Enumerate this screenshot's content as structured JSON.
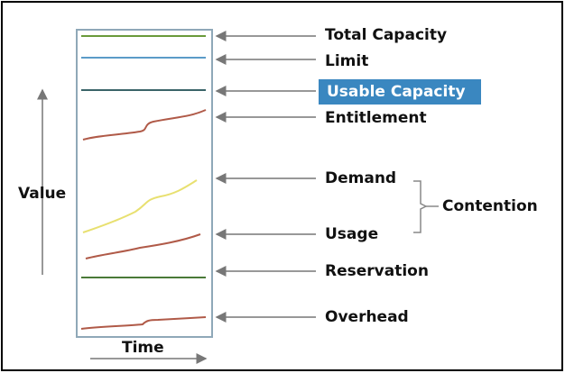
{
  "axes": {
    "y": "Value",
    "x": "Time"
  },
  "layers": [
    {
      "label": "Total Capacity"
    },
    {
      "label": "Limit"
    },
    {
      "label": "Usable Capacity"
    },
    {
      "label": "Entitlement"
    },
    {
      "label": "Demand"
    },
    {
      "label": "Usage"
    },
    {
      "label": "Reservation"
    },
    {
      "label": "Overhead"
    }
  ],
  "group": {
    "label": "Contention"
  }
}
